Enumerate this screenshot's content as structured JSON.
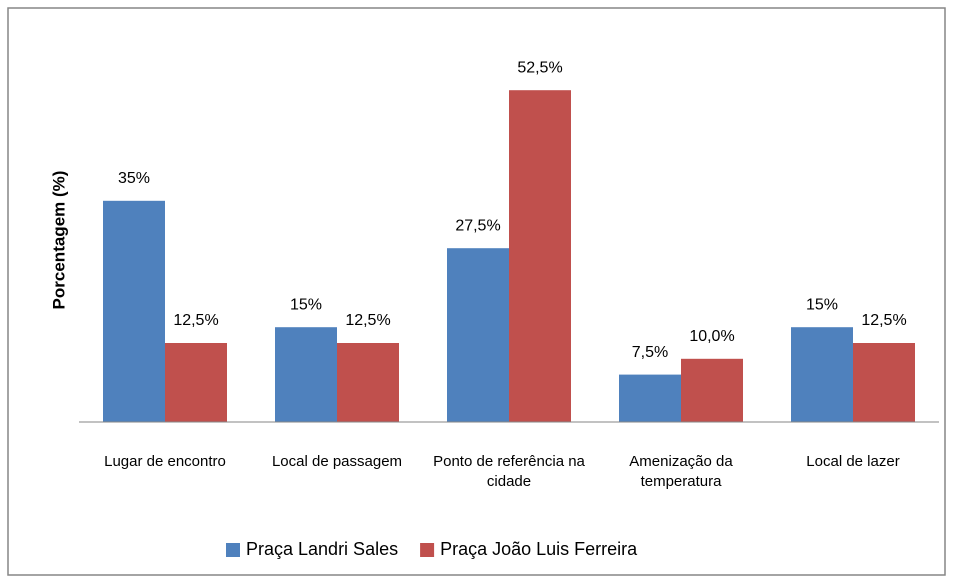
{
  "chart_data": {
    "type": "bar",
    "y_label": "Porcentagem (%)",
    "categories": [
      "Lugar de encontro",
      "Local de passagem",
      "Ponto de referência na cidade",
      "Amenização da temperatura",
      "Local de lazer"
    ],
    "series": [
      {
        "name": "Praça Landri Sales",
        "color": "#4f81bd",
        "values": [
          35,
          15,
          27.5,
          7.5,
          15
        ],
        "value_labels": [
          "35%",
          "15%",
          "27,5%",
          "7,5%",
          "15%"
        ]
      },
      {
        "name": "Praça João Luis Ferreira",
        "color": "#c0504d",
        "values": [
          12.5,
          12.5,
          52.5,
          10.0,
          12.5
        ],
        "value_labels": [
          "12,5%",
          "12,5%",
          "52,5%",
          "10,0%",
          "12,5%"
        ]
      }
    ],
    "ylim": [
      0,
      60
    ],
    "legend": "bottom"
  }
}
